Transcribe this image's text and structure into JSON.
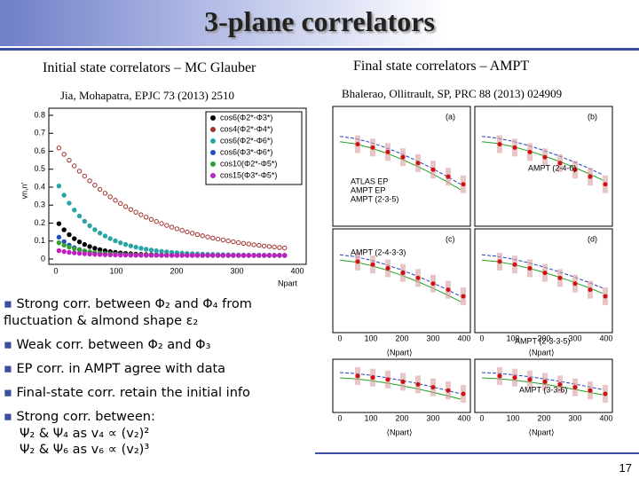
{
  "header": {
    "title": "3-plane correlators"
  },
  "left": {
    "heading": "Initial state correlators – MC Glauber",
    "citation": "Jia, Mohapatra,  EPJC 73 (2013) 2510",
    "plot": {
      "legend": [
        "cos6(Φ2*-Φ3*)",
        "cos4(Φ2*-Φ4*)",
        "cos6(Φ2*-Φ6*)",
        "cos6(Φ3*-Φ6*)",
        "cos10(Φ2*-Φ5*)",
        "cos15(Φ3*-Φ5*)"
      ],
      "yticks": [
        "0",
        "0.1",
        "0.2",
        "0.3",
        "0.4",
        "0.5",
        "0.6",
        "0.7",
        "0.8"
      ],
      "xticks": [
        "0",
        "100",
        "200",
        "300",
        "400"
      ],
      "x_label": "Npart",
      "y_label": "vn,n'"
    }
  },
  "right": {
    "heading": "Final state correlators –  AMPT",
    "citation": "Bhalerao, Ollitrault, SP,  PRC 88 (2013) 024909",
    "plot": {
      "panels": [
        "(a)",
        "(b)",
        "(c)",
        "(d)"
      ],
      "legend_a": [
        "ATLAS EP",
        "AMPT EP",
        "AMPT (2-3-5)"
      ],
      "legend_b": [
        "AMPT (2-4-6)"
      ],
      "legend_c": [
        "AMPT (2-4-3-3)"
      ],
      "legend_d": [
        "AMPT (2-3-3-5)"
      ],
      "legend_e": [
        "AMPT (3-3-6)"
      ],
      "xticks": [
        "0",
        "100",
        "200",
        "300",
        "400"
      ],
      "x_label": "⟨Npart⟩"
    }
  },
  "bullets": [
    "Strong corr. between Φ₂ and Φ₄  from fluctuation & almond shape ε₂",
    "Weak corr. between Φ₂ and Φ₃",
    "EP corr. in AMPT agree with data",
    "Final-state corr. retain the initial info",
    "Strong corr. between:"
  ],
  "sub_bullets": [
    "Ψ₂ & Ψ₄ as v₄ ∝ (v₂)²",
    "Ψ₂ & Ψ₆  as v₆ ∝ (v₂)³"
  ],
  "footer": {
    "page": "17"
  }
}
